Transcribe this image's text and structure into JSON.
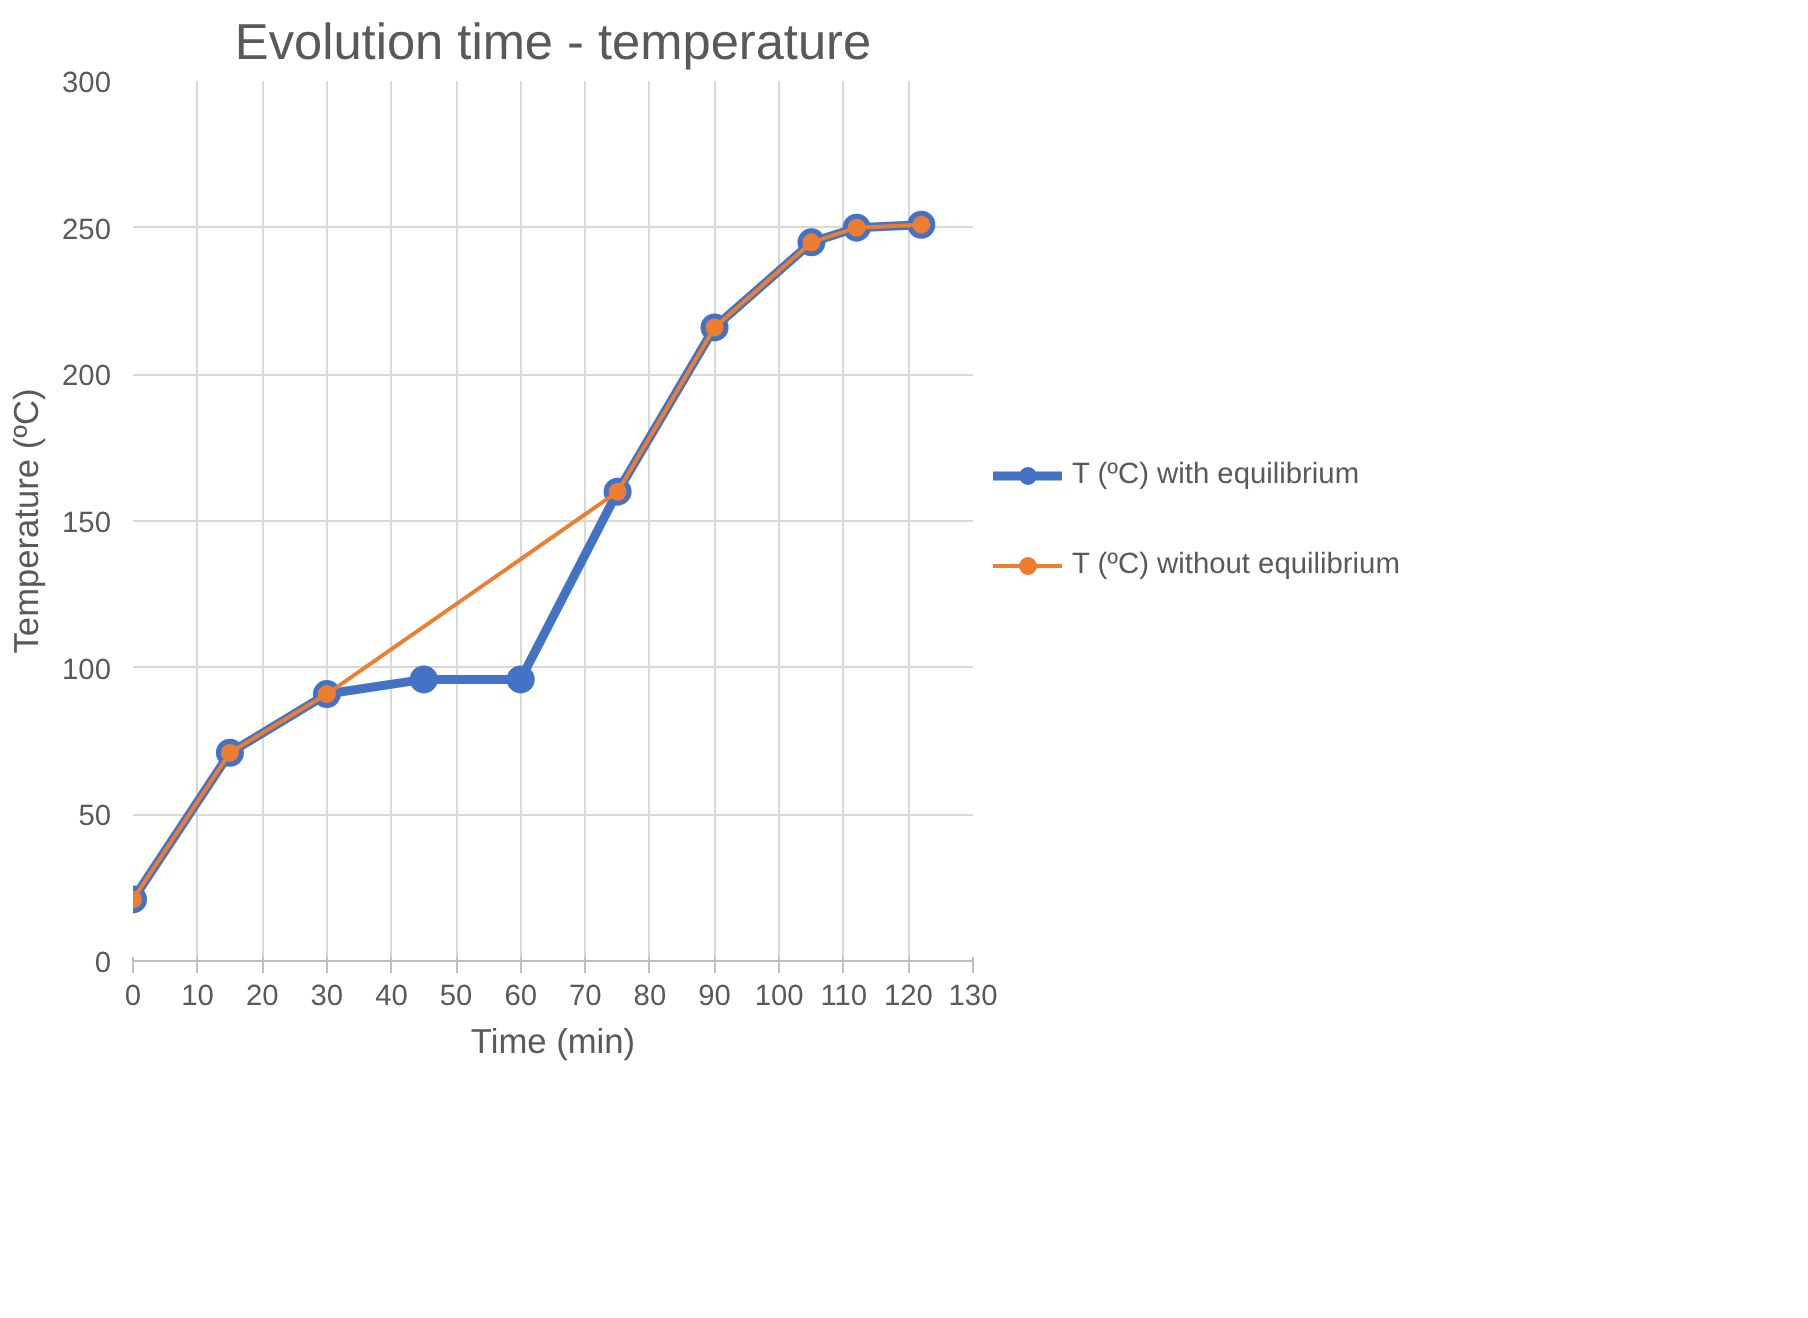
{
  "chart_data": {
    "type": "line",
    "title": "Evolution time - temperature",
    "xlabel": "Time (min)",
    "ylabel": "Temperature (ºC)",
    "xlim": [
      0,
      130
    ],
    "xticks": [
      0,
      10,
      20,
      30,
      40,
      50,
      60,
      70,
      80,
      90,
      100,
      110,
      120,
      130
    ],
    "ylim": [
      0,
      300
    ],
    "yticks": [
      0,
      50,
      100,
      150,
      200,
      250,
      300
    ],
    "grid": true,
    "legend": "right",
    "marker": "circle",
    "line_style": "solid",
    "series": [
      {
        "name": "T (ºC) with equilibrium",
        "color": "#4472c4",
        "x": [
          0,
          15,
          30,
          45,
          60,
          75,
          90,
          105,
          112,
          122
        ],
        "values": [
          21,
          71,
          91,
          96,
          96,
          160,
          216,
          245,
          250,
          251
        ]
      },
      {
        "name": "T (ºC) without equilibrium",
        "color": "#ed7d31",
        "x": [
          0,
          15,
          30,
          75,
          90,
          105,
          112,
          122
        ],
        "values": [
          21,
          71,
          91,
          160,
          216,
          245,
          250,
          251
        ]
      }
    ]
  }
}
